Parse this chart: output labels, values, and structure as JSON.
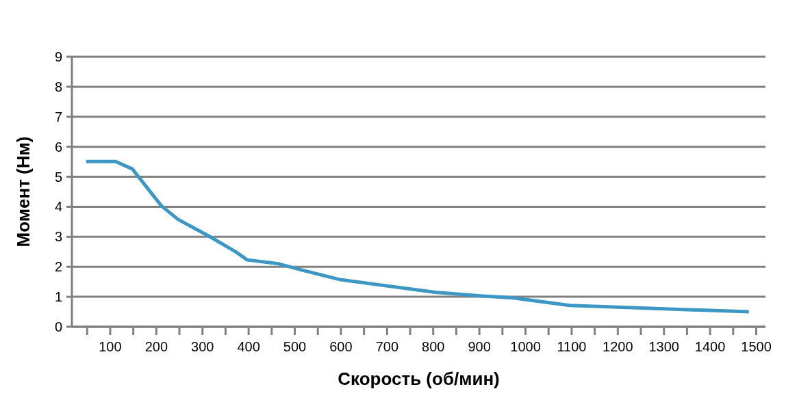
{
  "chart_data": {
    "type": "line",
    "xlabel": "Скорость (об/мин)",
    "ylabel": "Момент (Нм)",
    "xlim": [
      17,
      1520
    ],
    "xticks": [
      {
        "value": 50,
        "label": null
      },
      100,
      {
        "value": 150,
        "label": null
      },
      200,
      {
        "value": 250,
        "label": null
      },
      300,
      {
        "value": 350,
        "label": null
      },
      400,
      {
        "value": 450,
        "label": null
      },
      500,
      {
        "value": 550,
        "label": null
      },
      600,
      {
        "value": 650,
        "label": null
      },
      700,
      {
        "value": 750,
        "label": null
      },
      800,
      {
        "value": 850,
        "label": null
      },
      900,
      {
        "value": 950,
        "label": null
      },
      1000,
      {
        "value": 1050,
        "label": null
      },
      1100,
      {
        "value": 1150,
        "label": null
      },
      1200,
      {
        "value": 1250,
        "label": null
      },
      1300,
      {
        "value": 1350,
        "label": null
      },
      1400,
      {
        "value": 1450,
        "label": null
      },
      1500
    ],
    "ylim": [
      0,
      9
    ],
    "yticks": [
      0,
      1,
      2,
      3,
      4,
      5,
      6,
      7,
      8,
      9
    ],
    "grid": "y",
    "marker": "none",
    "line_style": "solid",
    "series": [
      {
        "color": "#3d97c5",
        "x": [
          48,
          112,
          148,
          211,
          247,
          313,
          371,
          397,
          465,
          516,
          599,
          804,
          902,
          975,
          1096,
          1241,
          1484
        ],
        "values": [
          5.51,
          5.51,
          5.26,
          4.03,
          3.58,
          3.03,
          2.51,
          2.23,
          2.1,
          1.89,
          1.57,
          1.15,
          1.03,
          0.96,
          0.71,
          0.63,
          0.5
        ]
      }
    ]
  }
}
